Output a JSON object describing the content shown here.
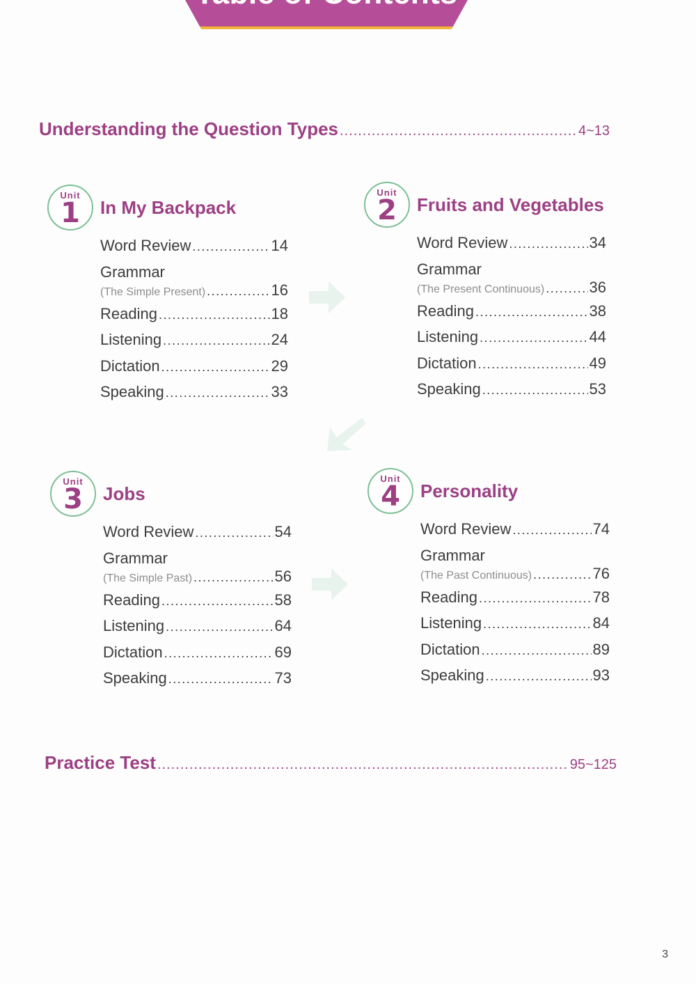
{
  "header": {
    "title": "Table of Contents"
  },
  "intro": {
    "label": "Understanding the Question Types",
    "pages": "4~13"
  },
  "units": [
    {
      "unit_word": "Unit",
      "number": "1",
      "title": "In My Backpack",
      "entries": [
        {
          "name": "Word Review",
          "page": "14"
        },
        {
          "name": "Grammar",
          "sub": "(The Simple Present)",
          "page": "16"
        },
        {
          "name": "Reading",
          "page": "18"
        },
        {
          "name": "Listening",
          "page": "24"
        },
        {
          "name": "Dictation",
          "page": "29"
        },
        {
          "name": "Speaking",
          "page": "33"
        }
      ]
    },
    {
      "unit_word": "Unit",
      "number": "2",
      "title": "Fruits and Vegetables",
      "entries": [
        {
          "name": "Word Review",
          "page": "34"
        },
        {
          "name": "Grammar",
          "sub": "(The Present Continuous)",
          "page": "36"
        },
        {
          "name": "Reading",
          "page": "38"
        },
        {
          "name": "Listening",
          "page": "44"
        },
        {
          "name": "Dictation",
          "page": "49"
        },
        {
          "name": "Speaking",
          "page": "53"
        }
      ]
    },
    {
      "unit_word": "Unit",
      "number": "3",
      "title": "Jobs",
      "entries": [
        {
          "name": "Word Review",
          "page": "54"
        },
        {
          "name": "Grammar",
          "sub": "(The Simple Past)",
          "page": "56"
        },
        {
          "name": "Reading",
          "page": "58"
        },
        {
          "name": "Listening",
          "page": "64"
        },
        {
          "name": "Dictation",
          "page": "69"
        },
        {
          "name": "Speaking",
          "page": "73"
        }
      ]
    },
    {
      "unit_word": "Unit",
      "number": "4",
      "title": "Personality",
      "entries": [
        {
          "name": "Word Review",
          "page": "74"
        },
        {
          "name": "Grammar",
          "sub": "(The Past Continuous)",
          "page": "76"
        },
        {
          "name": "Reading",
          "page": "78"
        },
        {
          "name": "Listening",
          "page": "84"
        },
        {
          "name": "Dictation",
          "page": "89"
        },
        {
          "name": "Speaking",
          "page": "93"
        }
      ]
    }
  ],
  "practice": {
    "label": "Practice Test",
    "pages": "95~125"
  },
  "footer": {
    "page_number": "3"
  },
  "colors": {
    "accent": "#9c3f83",
    "banner": "#b64d98",
    "banner_border": "#f4b63a",
    "badge_ring": "#7fbf97",
    "arrow": "#d9eee2"
  }
}
